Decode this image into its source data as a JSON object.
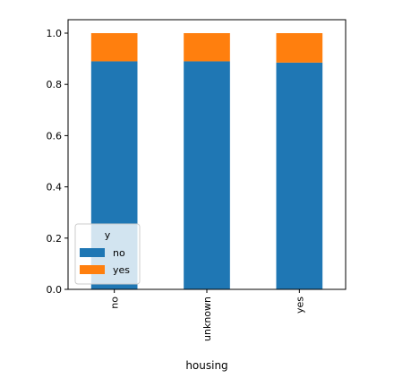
{
  "chart_data": {
    "type": "bar",
    "stacked": true,
    "categories": [
      "no",
      "unknown",
      "yes"
    ],
    "series": [
      {
        "name": "no",
        "values": [
          0.89,
          0.89,
          0.885
        ],
        "color": "#1f77b4"
      },
      {
        "name": "yes",
        "values": [
          0.11,
          0.11,
          0.115
        ],
        "color": "#ff7f0e"
      }
    ],
    "xlabel": "housing",
    "ylabel": "",
    "ylim": [
      0.0,
      1.0
    ],
    "yticks": [
      "0.0",
      "0.2",
      "0.4",
      "0.6",
      "0.8",
      "1.0"
    ],
    "legend": {
      "title": "y",
      "placement": "lower-left"
    },
    "grid": false
  }
}
